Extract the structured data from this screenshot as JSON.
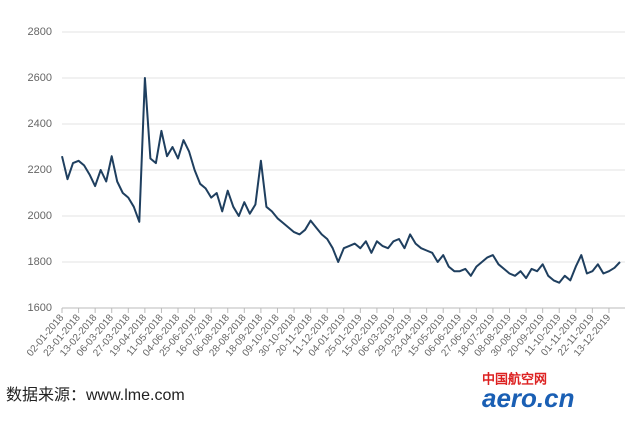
{
  "chart_data": {
    "type": "line",
    "categories": [
      "02-01-2018",
      null,
      null,
      "23-01-2018",
      null,
      null,
      "13-02-2018",
      null,
      null,
      "06-03-2018",
      null,
      null,
      "27-03-2018",
      null,
      null,
      "19-04-2018",
      null,
      null,
      "11-05-2018",
      null,
      null,
      "04-06-2018",
      null,
      null,
      "25-06-2018",
      null,
      null,
      "16-07-2018",
      null,
      null,
      "06-08-2018",
      null,
      null,
      "28-08-2018",
      null,
      null,
      "18-09-2018",
      null,
      null,
      "09-10-2018",
      null,
      null,
      "30-10-2018",
      null,
      null,
      "20-11-2018",
      null,
      null,
      "11-12-2018",
      null,
      null,
      "04-01-2019",
      null,
      null,
      "25-01-2019",
      null,
      null,
      "15-02-2019",
      null,
      null,
      "06-03-2019",
      null,
      null,
      "29-03-2019",
      null,
      null,
      "23-04-2019",
      null,
      null,
      "15-05-2019",
      null,
      null,
      "06-06-2019",
      null,
      null,
      "27-06-2019",
      null,
      null,
      "18-07-2019",
      null,
      null,
      "08-08-2019",
      null,
      null,
      "30-08-2019",
      null,
      null,
      "20-09-2019",
      null,
      null,
      "11-10-2019",
      null,
      null,
      "01-11-2019",
      null,
      null,
      "22-11-2019",
      null,
      null,
      "13-12-2019",
      null,
      null
    ],
    "series": [
      {
        "color": "#1f3f5f",
        "values": [
          2260,
          2160,
          2230,
          2240,
          2220,
          2180,
          2130,
          2200,
          2150,
          2260,
          2150,
          2100,
          2080,
          2040,
          1975,
          2600,
          2250,
          2230,
          2370,
          2260,
          2300,
          2250,
          2330,
          2280,
          2200,
          2140,
          2120,
          2080,
          2100,
          2020,
          2110,
          2040,
          2000,
          2060,
          2010,
          2050,
          2240,
          2040,
          2020,
          1990,
          1970,
          1950,
          1930,
          1920,
          1940,
          1980,
          1950,
          1920,
          1900,
          1860,
          1800,
          1860,
          1870,
          1880,
          1860,
          1890,
          1840,
          1890,
          1870,
          1860,
          1890,
          1900,
          1860,
          1920,
          1880,
          1860,
          1850,
          1840,
          1800,
          1830,
          1780,
          1760,
          1760,
          1770,
          1740,
          1780,
          1800,
          1820,
          1830,
          1790,
          1770,
          1750,
          1740,
          1760,
          1730,
          1770,
          1760,
          1790,
          1740,
          1720,
          1710,
          1740,
          1720,
          1780,
          1830,
          1750,
          1760,
          1790,
          1750,
          1760,
          1775,
          1800
        ]
      }
    ],
    "ylim": [
      1600,
      2800
    ],
    "yticks": [
      1600,
      1800,
      2000,
      2200,
      2400,
      2600,
      2800
    ],
    "grid": true
  },
  "source": "数据来源：www.lme.com",
  "logo": {
    "cn": "中国航空网",
    "en": "aero.cn"
  }
}
